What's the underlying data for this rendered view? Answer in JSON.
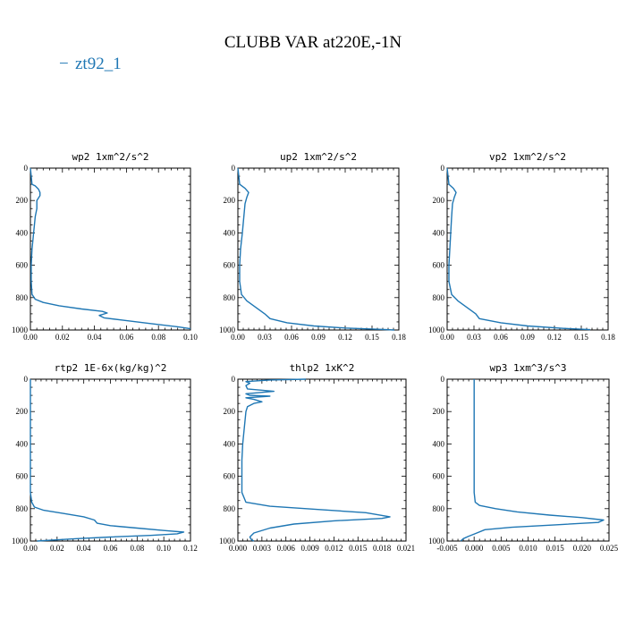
{
  "title": "CLUBB VAR at220E,-1N",
  "legend": {
    "label": "zt92_1",
    "marker": "−",
    "color": "#1f77b4"
  },
  "chart_data": [
    {
      "type": "line",
      "title": "wp2   1xm^2/s^2",
      "xlim": [
        0,
        0.1
      ],
      "ylim": [
        1000,
        0
      ],
      "xticks": [
        "0.00",
        "0.02",
        "0.04",
        "0.06",
        "0.08",
        "0.10"
      ],
      "xtick_values": [
        0,
        0.02,
        0.04,
        0.06,
        0.08,
        0.1
      ],
      "yticks": [
        "0",
        "200",
        "400",
        "600",
        "800",
        "1000"
      ],
      "yminor": 50,
      "series": [
        {
          "color": "#1f77b4",
          "points": [
            [
              0,
              0
            ],
            [
              0.001,
              100
            ],
            [
              0.003,
              110
            ],
            [
              0.005,
              130
            ],
            [
              0.006,
              150
            ],
            [
              0.006,
              170
            ],
            [
              0.004,
              200
            ],
            [
              0.004,
              250
            ],
            [
              0.003,
              300
            ],
            [
              0.002,
              400
            ],
            [
              0.001,
              500
            ],
            [
              0.0005,
              600
            ],
            [
              0.0005,
              700
            ],
            [
              0.001,
              780
            ],
            [
              0.003,
              810
            ],
            [
              0.008,
              830
            ],
            [
              0.018,
              850
            ],
            [
              0.032,
              870
            ],
            [
              0.045,
              885
            ],
            [
              0.048,
              895
            ],
            [
              0.043,
              910
            ],
            [
              0.046,
              925
            ],
            [
              0.058,
              940
            ],
            [
              0.075,
              960
            ],
            [
              0.092,
              980
            ],
            [
              0.1,
              992
            ]
          ]
        }
      ]
    },
    {
      "type": "line",
      "title": "up2   1xm^2/s^2",
      "xlim": [
        0,
        0.18
      ],
      "ylim": [
        1000,
        0
      ],
      "xticks": [
        "0.00",
        "0.03",
        "0.06",
        "0.09",
        "0.12",
        "0.15",
        "0.18"
      ],
      "xtick_values": [
        0,
        0.03,
        0.06,
        0.09,
        0.12,
        0.15,
        0.18
      ],
      "yticks": [
        "0",
        "200",
        "400",
        "600",
        "800",
        "1000"
      ],
      "yminor": 50,
      "series": [
        {
          "color": "#1f77b4",
          "points": [
            [
              0,
              0
            ],
            [
              0.002,
              100
            ],
            [
              0.008,
              125
            ],
            [
              0.012,
              150
            ],
            [
              0.01,
              180
            ],
            [
              0.008,
              220
            ],
            [
              0.007,
              280
            ],
            [
              0.005,
              400
            ],
            [
              0.003,
              500
            ],
            [
              0.002,
              600
            ],
            [
              0.002,
              700
            ],
            [
              0.004,
              780
            ],
            [
              0.01,
              820
            ],
            [
              0.02,
              860
            ],
            [
              0.03,
              900
            ],
            [
              0.036,
              930
            ],
            [
              0.055,
              955
            ],
            [
              0.085,
              975
            ],
            [
              0.12,
              988
            ],
            [
              0.16,
              996
            ],
            [
              0.175,
              1000
            ]
          ]
        }
      ]
    },
    {
      "type": "line",
      "title": "vp2   1xm^2/s^2",
      "xlim": [
        0,
        0.18
      ],
      "ylim": [
        1000,
        0
      ],
      "xticks": [
        "0.00",
        "0.03",
        "0.06",
        "0.09",
        "0.12",
        "0.15",
        "0.18"
      ],
      "xtick_values": [
        0,
        0.03,
        0.06,
        0.09,
        0.12,
        0.15,
        0.18
      ],
      "yticks": [
        "0",
        "200",
        "400",
        "600",
        "800",
        "1000"
      ],
      "yminor": 50,
      "series": [
        {
          "color": "#1f77b4",
          "points": [
            [
              0,
              0
            ],
            [
              0.002,
              100
            ],
            [
              0.007,
              125
            ],
            [
              0.01,
              150
            ],
            [
              0.008,
              180
            ],
            [
              0.006,
              220
            ],
            [
              0.005,
              300
            ],
            [
              0.004,
              400
            ],
            [
              0.003,
              500
            ],
            [
              0.002,
              600
            ],
            [
              0.002,
              700
            ],
            [
              0.005,
              780
            ],
            [
              0.012,
              820
            ],
            [
              0.022,
              860
            ],
            [
              0.032,
              900
            ],
            [
              0.036,
              930
            ],
            [
              0.06,
              955
            ],
            [
              0.09,
              975
            ],
            [
              0.13,
              990
            ],
            [
              0.16,
              998
            ]
          ]
        }
      ]
    },
    {
      "type": "line",
      "title": "rtp2   1E-6x(kg/kg)^2",
      "xlim": [
        0,
        0.12
      ],
      "ylim": [
        1000,
        0
      ],
      "xticks": [
        "0.00",
        "0.02",
        "0.04",
        "0.06",
        "0.08",
        "0.10",
        "0.12"
      ],
      "xtick_values": [
        0,
        0.02,
        0.04,
        0.06,
        0.08,
        0.1,
        0.12
      ],
      "yticks": [
        "0",
        "200",
        "400",
        "600",
        "800",
        "1000"
      ],
      "yminor": 50,
      "series": [
        {
          "color": "#1f77b4",
          "points": [
            [
              0,
              0
            ],
            [
              0,
              700
            ],
            [
              0.001,
              760
            ],
            [
              0.003,
              790
            ],
            [
              0.01,
              810
            ],
            [
              0.025,
              830
            ],
            [
              0.04,
              850
            ],
            [
              0.048,
              870
            ],
            [
              0.05,
              890
            ],
            [
              0.06,
              905
            ],
            [
              0.08,
              920
            ],
            [
              0.1,
              935
            ],
            [
              0.115,
              945
            ],
            [
              0.11,
              955
            ],
            [
              0.09,
              965
            ],
            [
              0.06,
              975
            ],
            [
              0.035,
              985
            ],
            [
              0.015,
              995
            ],
            [
              0.005,
              1000
            ]
          ]
        }
      ]
    },
    {
      "type": "line",
      "title": "thlp2   1xK^2",
      "xlim": [
        0,
        0.021
      ],
      "ylim": [
        1000,
        0
      ],
      "xticks": [
        "0.000",
        "0.003",
        "0.006",
        "0.009",
        "0.012",
        "0.015",
        "0.018",
        "0.021"
      ],
      "xtick_values": [
        0,
        0.003,
        0.006,
        0.009,
        0.012,
        0.015,
        0.018,
        0.021
      ],
      "yticks": [
        "0",
        "200",
        "400",
        "600",
        "800",
        "1000"
      ],
      "yminor": 50,
      "series": [
        {
          "color": "#1f77b4",
          "points": [
            [
              0.0085,
              0
            ],
            [
              0.004,
              5
            ],
            [
              0.0025,
              10
            ],
            [
              0.001,
              15
            ],
            [
              0.0015,
              25
            ],
            [
              0.001,
              40
            ],
            [
              0.0012,
              60
            ],
            [
              0.0045,
              75
            ],
            [
              0.001,
              90
            ],
            [
              0.0015,
              100
            ],
            [
              0.004,
              105
            ],
            [
              0.001,
              115
            ],
            [
              0.002,
              125
            ],
            [
              0.003,
              140
            ],
            [
              0.002,
              150
            ],
            [
              0.0012,
              170
            ],
            [
              0.001,
              200
            ],
            [
              0.0008,
              300
            ],
            [
              0.0006,
              400
            ],
            [
              0.0005,
              500
            ],
            [
              0.0005,
              600
            ],
            [
              0.0005,
              700
            ],
            [
              0.001,
              760
            ],
            [
              0.004,
              785
            ],
            [
              0.01,
              805
            ],
            [
              0.016,
              825
            ],
            [
              0.019,
              850
            ],
            [
              0.018,
              860
            ],
            [
              0.012,
              875
            ],
            [
              0.007,
              895
            ],
            [
              0.004,
              920
            ],
            [
              0.002,
              950
            ],
            [
              0.0015,
              975
            ],
            [
              0.0017,
              992
            ],
            [
              0.002,
              1000
            ]
          ]
        }
      ]
    },
    {
      "type": "line",
      "title": "wp3   1xm^3/s^3",
      "xlim": [
        -0.005,
        0.025
      ],
      "ylim": [
        1000,
        0
      ],
      "xticks": [
        "-0.005",
        "0.000",
        "0.005",
        "0.010",
        "0.015",
        "0.020",
        "0.025"
      ],
      "xtick_values": [
        -0.005,
        0,
        0.005,
        0.01,
        0.015,
        0.02,
        0.025
      ],
      "yticks": [
        "0",
        "200",
        "400",
        "600",
        "800",
        "1000"
      ],
      "yminor": 50,
      "series": [
        {
          "color": "#1f77b4",
          "points": [
            [
              0,
              0
            ],
            [
              0,
              500
            ],
            [
              0,
              700
            ],
            [
              0.0002,
              760
            ],
            [
              0.001,
              780
            ],
            [
              0.004,
              800
            ],
            [
              0.008,
              820
            ],
            [
              0.014,
              840
            ],
            [
              0.02,
              855
            ],
            [
              0.024,
              870
            ],
            [
              0.023,
              885
            ],
            [
              0.015,
              900
            ],
            [
              0.007,
              915
            ],
            [
              0.002,
              930
            ],
            [
              0.0005,
              950
            ],
            [
              -0.001,
              970
            ],
            [
              -0.002,
              985
            ],
            [
              -0.0025,
              1000
            ]
          ]
        }
      ]
    }
  ]
}
